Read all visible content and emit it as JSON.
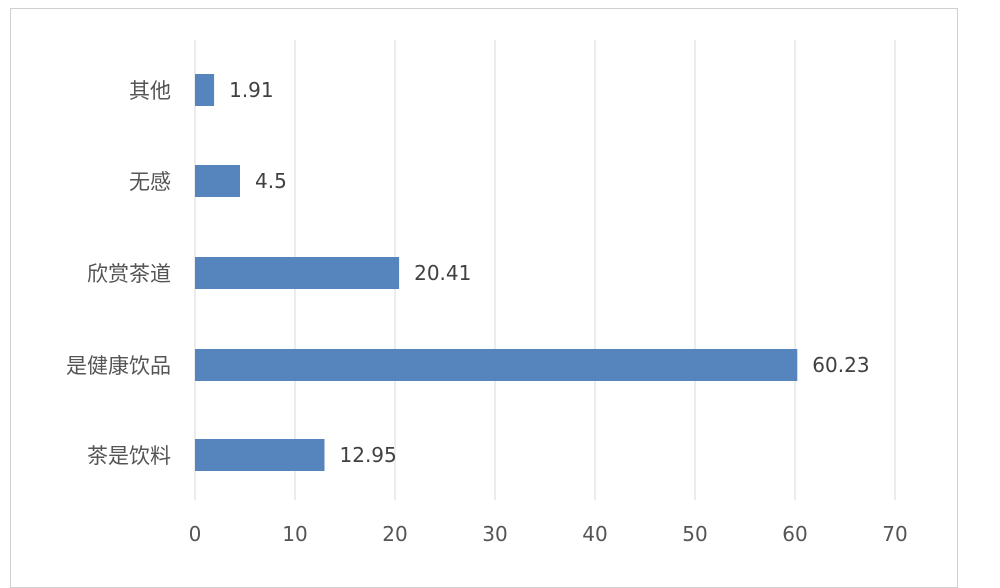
{
  "chart_data": {
    "type": "bar",
    "orientation": "horizontal",
    "categories": [
      "其他",
      "无感",
      "欣赏茶道",
      "是健康饮品",
      "茶是饮料"
    ],
    "values": [
      1.91,
      4.5,
      20.41,
      60.23,
      12.95
    ],
    "data_labels": [
      "1.91",
      "4.5",
      "20.41",
      "60.23",
      "12.95"
    ],
    "xlim": [
      0,
      70
    ],
    "x_ticks": [
      "0",
      "10",
      "20",
      "30",
      "40",
      "50",
      "60",
      "70"
    ],
    "grid": "vertical",
    "legend": "none",
    "title": "",
    "xlabel": "",
    "ylabel": "",
    "bar_color": "#5585bc",
    "grid_color": "#dadada"
  }
}
